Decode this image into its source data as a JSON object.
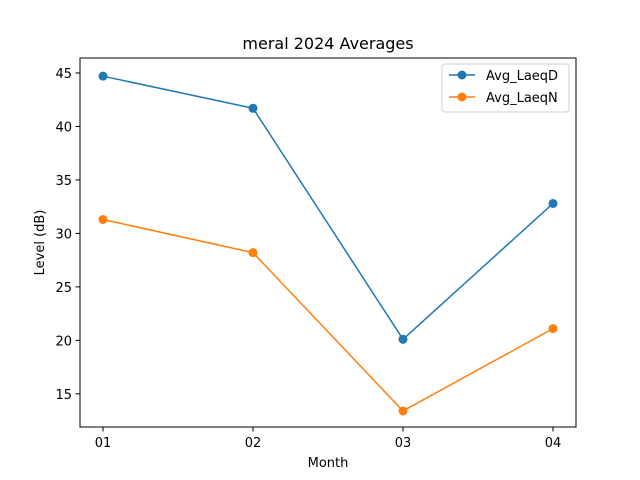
{
  "chart_data": {
    "type": "line",
    "title": "meral 2024 Averages",
    "xlabel": "Month",
    "ylabel": "Level (dB)",
    "categories": [
      "01",
      "02",
      "03",
      "04"
    ],
    "ylim": [
      11.9,
      46.4
    ],
    "yticks": [
      15,
      20,
      25,
      30,
      35,
      40,
      45
    ],
    "grid": false,
    "legend_position": "top-right",
    "series": [
      {
        "name": "Avg_LaeqD",
        "color": "#1f77b4",
        "values": [
          44.7,
          41.7,
          20.1,
          32.8
        ]
      },
      {
        "name": "Avg_LaeqN",
        "color": "#ff7f0e",
        "values": [
          31.3,
          28.2,
          13.4,
          21.1
        ]
      }
    ]
  }
}
